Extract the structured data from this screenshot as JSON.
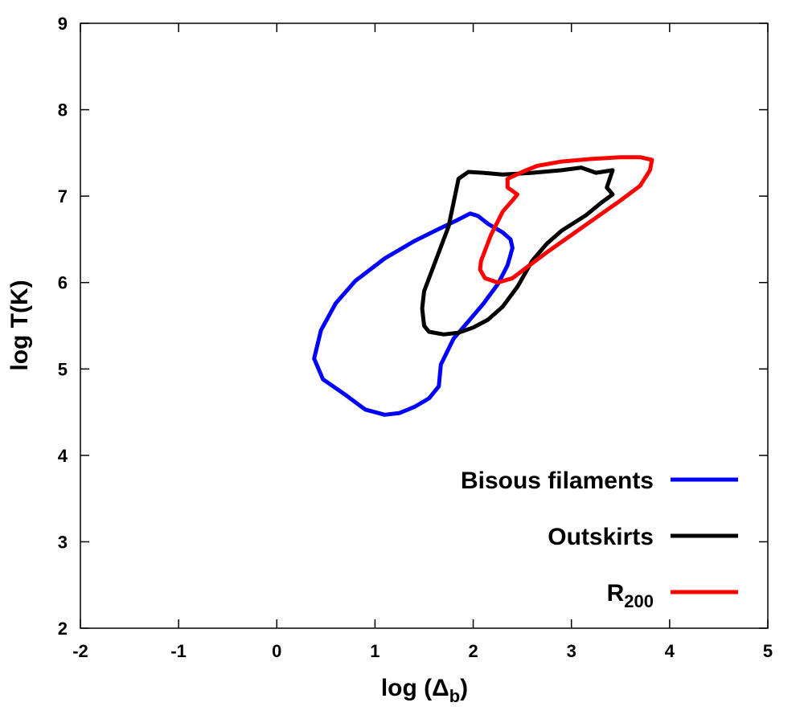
{
  "chart_data": {
    "type": "line",
    "title": "",
    "xlabel": {
      "main": "log (Δ",
      "sub": "b",
      "close": ")"
    },
    "ylabel": "log T(K)",
    "xlim": [
      -2,
      5
    ],
    "ylim": [
      2,
      9
    ],
    "xticks": [
      "-2",
      "-1",
      "0",
      "1",
      "2",
      "3",
      "4",
      "5"
    ],
    "yticks": [
      "2",
      "3",
      "4",
      "5",
      "6",
      "7",
      "8",
      "9"
    ],
    "grid": false,
    "legend_position": "bottom-right",
    "series": [
      {
        "name": "Bisous filaments",
        "color": "#0000ff",
        "points": [
          [
            1.1,
            4.47
          ],
          [
            1.25,
            4.49
          ],
          [
            1.4,
            4.56
          ],
          [
            1.55,
            4.66
          ],
          [
            1.65,
            4.8
          ],
          [
            1.67,
            5.05
          ],
          [
            1.8,
            5.35
          ],
          [
            1.95,
            5.55
          ],
          [
            2.1,
            5.75
          ],
          [
            2.25,
            5.98
          ],
          [
            2.35,
            6.2
          ],
          [
            2.4,
            6.4
          ],
          [
            2.38,
            6.5
          ],
          [
            2.3,
            6.58
          ],
          [
            2.15,
            6.68
          ],
          [
            2.05,
            6.77
          ],
          [
            1.97,
            6.8
          ],
          [
            1.85,
            6.73
          ],
          [
            1.65,
            6.62
          ],
          [
            1.4,
            6.48
          ],
          [
            1.1,
            6.28
          ],
          [
            0.8,
            6.02
          ],
          [
            0.6,
            5.76
          ],
          [
            0.45,
            5.45
          ],
          [
            0.38,
            5.12
          ],
          [
            0.47,
            4.88
          ],
          [
            0.7,
            4.7
          ],
          [
            0.9,
            4.53
          ],
          [
            1.1,
            4.47
          ]
        ]
      },
      {
        "name": "Outskirts",
        "color": "#000000",
        "points": [
          [
            1.5,
            5.5
          ],
          [
            1.55,
            5.43
          ],
          [
            1.7,
            5.4
          ],
          [
            1.85,
            5.42
          ],
          [
            2.0,
            5.48
          ],
          [
            2.15,
            5.57
          ],
          [
            2.3,
            5.72
          ],
          [
            2.45,
            5.95
          ],
          [
            2.6,
            6.25
          ],
          [
            2.75,
            6.45
          ],
          [
            2.9,
            6.6
          ],
          [
            3.15,
            6.78
          ],
          [
            3.3,
            6.92
          ],
          [
            3.42,
            7.02
          ],
          [
            3.36,
            7.1
          ],
          [
            3.42,
            7.3
          ],
          [
            3.25,
            7.27
          ],
          [
            3.1,
            7.33
          ],
          [
            2.9,
            7.3
          ],
          [
            2.6,
            7.27
          ],
          [
            2.3,
            7.25
          ],
          [
            2.1,
            7.27
          ],
          [
            1.95,
            7.28
          ],
          [
            1.85,
            7.2
          ],
          [
            1.75,
            6.65
          ],
          [
            1.6,
            6.2
          ],
          [
            1.5,
            5.9
          ],
          [
            1.48,
            5.7
          ],
          [
            1.5,
            5.5
          ]
        ]
      },
      {
        "name": "R",
        "name_sub": "200",
        "color": "#ff0000",
        "points": [
          [
            2.25,
            6.0
          ],
          [
            2.12,
            6.05
          ],
          [
            2.07,
            6.15
          ],
          [
            2.08,
            6.25
          ],
          [
            2.18,
            6.55
          ],
          [
            2.3,
            6.82
          ],
          [
            2.4,
            6.95
          ],
          [
            2.45,
            7.02
          ],
          [
            2.35,
            7.1
          ],
          [
            2.35,
            7.2
          ],
          [
            2.5,
            7.28
          ],
          [
            2.65,
            7.35
          ],
          [
            2.9,
            7.4
          ],
          [
            3.2,
            7.43
          ],
          [
            3.5,
            7.45
          ],
          [
            3.7,
            7.45
          ],
          [
            3.82,
            7.42
          ],
          [
            3.8,
            7.3
          ],
          [
            3.7,
            7.12
          ],
          [
            3.5,
            6.95
          ],
          [
            3.25,
            6.75
          ],
          [
            3.0,
            6.55
          ],
          [
            2.75,
            6.35
          ],
          [
            2.55,
            6.18
          ],
          [
            2.4,
            6.05
          ],
          [
            2.25,
            6.0
          ]
        ]
      }
    ]
  }
}
